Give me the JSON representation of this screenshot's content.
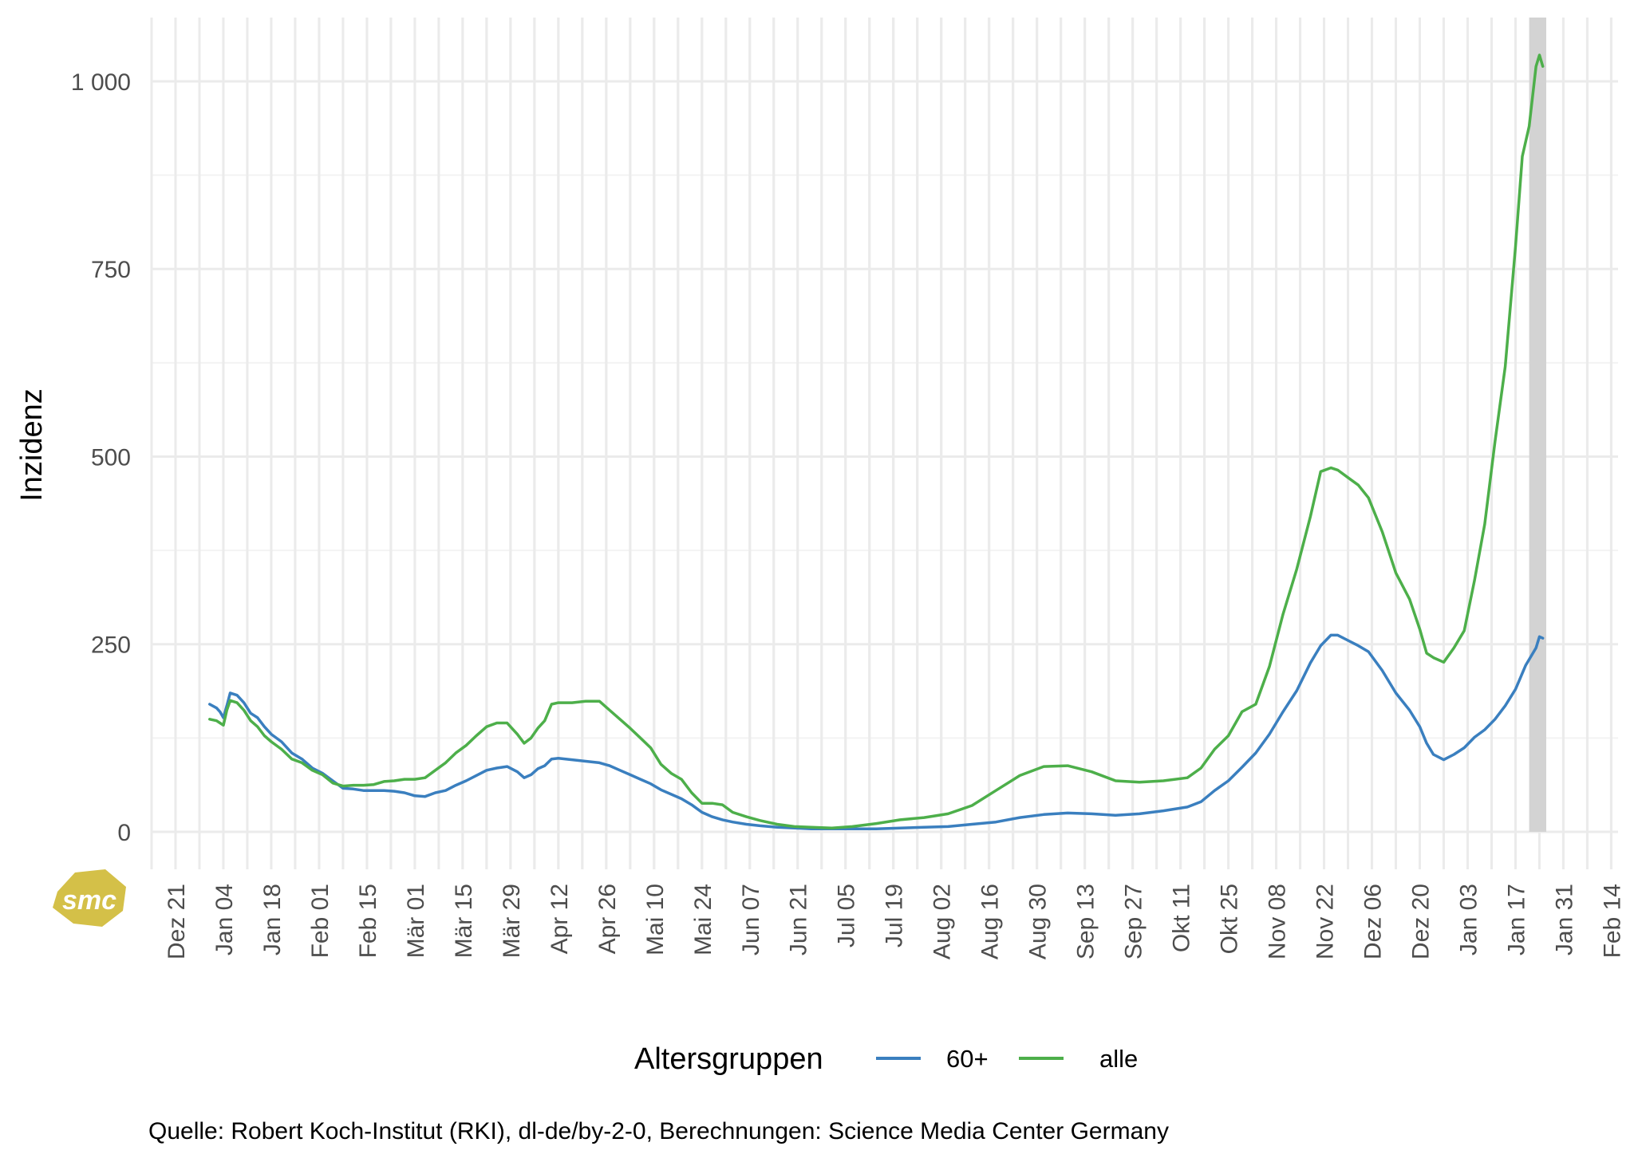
{
  "chart_data": {
    "type": "line",
    "ylabel": "Inzidenz",
    "yticks": [
      {
        "value": 0,
        "label": "0"
      },
      {
        "value": 250,
        "label": "250"
      },
      {
        "value": 500,
        "label": "500"
      },
      {
        "value": 750,
        "label": "750"
      },
      {
        "value": 1000,
        "label": "1 000"
      }
    ],
    "ylim": [
      -50,
      1085
    ],
    "xlim": [
      "2020-12-14",
      "2022-02-16"
    ],
    "xticks": [
      {
        "date": "2020-12-21",
        "label": "Dez 21"
      },
      {
        "date": "2021-01-04",
        "label": "Jan 04"
      },
      {
        "date": "2021-01-18",
        "label": "Jan 18"
      },
      {
        "date": "2021-02-01",
        "label": "Feb 01"
      },
      {
        "date": "2021-02-15",
        "label": "Feb 15"
      },
      {
        "date": "2021-03-01",
        "label": "Mär 01"
      },
      {
        "date": "2021-03-15",
        "label": "Mär 15"
      },
      {
        "date": "2021-03-29",
        "label": "Mär 29"
      },
      {
        "date": "2021-04-12",
        "label": "Apr 12"
      },
      {
        "date": "2021-04-26",
        "label": "Apr 26"
      },
      {
        "date": "2021-05-10",
        "label": "Mai 10"
      },
      {
        "date": "2021-05-24",
        "label": "Mai 24"
      },
      {
        "date": "2021-06-07",
        "label": "Jun 07"
      },
      {
        "date": "2021-06-21",
        "label": "Jun 21"
      },
      {
        "date": "2021-07-05",
        "label": "Jul 05"
      },
      {
        "date": "2021-07-19",
        "label": "Jul 19"
      },
      {
        "date": "2021-08-02",
        "label": "Aug 02"
      },
      {
        "date": "2021-08-16",
        "label": "Aug 16"
      },
      {
        "date": "2021-08-30",
        "label": "Aug 30"
      },
      {
        "date": "2021-09-13",
        "label": "Sep 13"
      },
      {
        "date": "2021-09-27",
        "label": "Sep 27"
      },
      {
        "date": "2021-10-11",
        "label": "Okt 11"
      },
      {
        "date": "2021-10-25",
        "label": "Okt 25"
      },
      {
        "date": "2021-11-08",
        "label": "Nov 08"
      },
      {
        "date": "2021-11-22",
        "label": "Nov 22"
      },
      {
        "date": "2021-12-06",
        "label": "Dez 06"
      },
      {
        "date": "2021-12-20",
        "label": "Dez 20"
      },
      {
        "date": "2022-01-03",
        "label": "Jan 03"
      },
      {
        "date": "2022-01-17",
        "label": "Jan 17"
      },
      {
        "date": "2022-01-31",
        "label": "Jan 31"
      },
      {
        "date": "2022-02-14",
        "label": "Feb 14"
      }
    ],
    "shaded_range": [
      "2022-01-21",
      "2022-01-26"
    ],
    "grid": true,
    "legend": {
      "title": "Altersgruppen",
      "placement": "bottom"
    },
    "series": [
      {
        "name": "60+",
        "color": "#3a7fbf",
        "points": [
          [
            "2020-12-31",
            170
          ],
          [
            "2021-01-02",
            165
          ],
          [
            "2021-01-03",
            160
          ],
          [
            "2021-01-04",
            152
          ],
          [
            "2021-01-05",
            168
          ],
          [
            "2021-01-06",
            185
          ],
          [
            "2021-01-08",
            182
          ],
          [
            "2021-01-10",
            172
          ],
          [
            "2021-01-12",
            158
          ],
          [
            "2021-01-14",
            152
          ],
          [
            "2021-01-16",
            140
          ],
          [
            "2021-01-18",
            130
          ],
          [
            "2021-01-21",
            120
          ],
          [
            "2021-01-24",
            105
          ],
          [
            "2021-01-27",
            97
          ],
          [
            "2021-01-30",
            85
          ],
          [
            "2021-02-02",
            78
          ],
          [
            "2021-02-05",
            68
          ],
          [
            "2021-02-08",
            58
          ],
          [
            "2021-02-11",
            57
          ],
          [
            "2021-02-14",
            55
          ],
          [
            "2021-02-17",
            55
          ],
          [
            "2021-02-20",
            55
          ],
          [
            "2021-02-23",
            54
          ],
          [
            "2021-02-26",
            52
          ],
          [
            "2021-03-01",
            48
          ],
          [
            "2021-03-04",
            47
          ],
          [
            "2021-03-07",
            52
          ],
          [
            "2021-03-10",
            55
          ],
          [
            "2021-03-13",
            62
          ],
          [
            "2021-03-16",
            68
          ],
          [
            "2021-03-19",
            75
          ],
          [
            "2021-03-22",
            82
          ],
          [
            "2021-03-25",
            85
          ],
          [
            "2021-03-28",
            87
          ],
          [
            "2021-03-31",
            80
          ],
          [
            "2021-04-02",
            72
          ],
          [
            "2021-04-04",
            76
          ],
          [
            "2021-04-06",
            84
          ],
          [
            "2021-04-08",
            88
          ],
          [
            "2021-04-10",
            97
          ],
          [
            "2021-04-12",
            98
          ],
          [
            "2021-04-16",
            96
          ],
          [
            "2021-04-20",
            94
          ],
          [
            "2021-04-24",
            92
          ],
          [
            "2021-04-27",
            88
          ],
          [
            "2021-04-30",
            82
          ],
          [
            "2021-05-03",
            76
          ],
          [
            "2021-05-06",
            70
          ],
          [
            "2021-05-09",
            64
          ],
          [
            "2021-05-12",
            56
          ],
          [
            "2021-05-15",
            50
          ],
          [
            "2021-05-18",
            44
          ],
          [
            "2021-05-21",
            36
          ],
          [
            "2021-05-24",
            26
          ],
          [
            "2021-05-27",
            20
          ],
          [
            "2021-05-30",
            16
          ],
          [
            "2021-06-02",
            13
          ],
          [
            "2021-06-06",
            10
          ],
          [
            "2021-06-10",
            8
          ],
          [
            "2021-06-15",
            6
          ],
          [
            "2021-06-20",
            5
          ],
          [
            "2021-06-25",
            4
          ],
          [
            "2021-07-01",
            4
          ],
          [
            "2021-07-07",
            4
          ],
          [
            "2021-07-14",
            4
          ],
          [
            "2021-07-21",
            5
          ],
          [
            "2021-07-28",
            6
          ],
          [
            "2021-08-04",
            7
          ],
          [
            "2021-08-11",
            10
          ],
          [
            "2021-08-18",
            13
          ],
          [
            "2021-08-25",
            19
          ],
          [
            "2021-09-01",
            23
          ],
          [
            "2021-09-08",
            25
          ],
          [
            "2021-09-15",
            24
          ],
          [
            "2021-09-22",
            22
          ],
          [
            "2021-09-29",
            24
          ],
          [
            "2021-10-06",
            28
          ],
          [
            "2021-10-13",
            33
          ],
          [
            "2021-10-17",
            40
          ],
          [
            "2021-10-21",
            55
          ],
          [
            "2021-10-25",
            68
          ],
          [
            "2021-10-29",
            86
          ],
          [
            "2021-11-02",
            105
          ],
          [
            "2021-11-06",
            130
          ],
          [
            "2021-11-10",
            160
          ],
          [
            "2021-11-14",
            188
          ],
          [
            "2021-11-18",
            225
          ],
          [
            "2021-11-21",
            248
          ],
          [
            "2021-11-24",
            262
          ],
          [
            "2021-11-26",
            262
          ],
          [
            "2021-11-29",
            255
          ],
          [
            "2021-12-02",
            248
          ],
          [
            "2021-12-05",
            240
          ],
          [
            "2021-12-09",
            215
          ],
          [
            "2021-12-13",
            185
          ],
          [
            "2021-12-17",
            162
          ],
          [
            "2021-12-20",
            140
          ],
          [
            "2021-12-22",
            118
          ],
          [
            "2021-12-24",
            103
          ],
          [
            "2021-12-27",
            96
          ],
          [
            "2021-12-30",
            103
          ],
          [
            "2022-01-02",
            112
          ],
          [
            "2022-01-05",
            126
          ],
          [
            "2022-01-08",
            136
          ],
          [
            "2022-01-11",
            150
          ],
          [
            "2022-01-14",
            168
          ],
          [
            "2022-01-17",
            190
          ],
          [
            "2022-01-20",
            222
          ],
          [
            "2022-01-23",
            245
          ],
          [
            "2022-01-24",
            260
          ],
          [
            "2022-01-25",
            258
          ]
        ]
      },
      {
        "name": "alle",
        "color": "#4daf4a",
        "points": [
          [
            "2020-12-31",
            150
          ],
          [
            "2021-01-02",
            148
          ],
          [
            "2021-01-03",
            145
          ],
          [
            "2021-01-04",
            142
          ],
          [
            "2021-01-05",
            162
          ],
          [
            "2021-01-06",
            175
          ],
          [
            "2021-01-08",
            172
          ],
          [
            "2021-01-10",
            162
          ],
          [
            "2021-01-12",
            148
          ],
          [
            "2021-01-14",
            140
          ],
          [
            "2021-01-16",
            128
          ],
          [
            "2021-01-18",
            120
          ],
          [
            "2021-01-21",
            110
          ],
          [
            "2021-01-24",
            97
          ],
          [
            "2021-01-27",
            92
          ],
          [
            "2021-01-30",
            82
          ],
          [
            "2021-02-02",
            76
          ],
          [
            "2021-02-05",
            65
          ],
          [
            "2021-02-08",
            61
          ],
          [
            "2021-02-11",
            62
          ],
          [
            "2021-02-14",
            62
          ],
          [
            "2021-02-17",
            63
          ],
          [
            "2021-02-20",
            67
          ],
          [
            "2021-02-23",
            68
          ],
          [
            "2021-02-26",
            70
          ],
          [
            "2021-03-01",
            70
          ],
          [
            "2021-03-04",
            72
          ],
          [
            "2021-03-07",
            82
          ],
          [
            "2021-03-10",
            92
          ],
          [
            "2021-03-13",
            105
          ],
          [
            "2021-03-16",
            115
          ],
          [
            "2021-03-19",
            128
          ],
          [
            "2021-03-22",
            140
          ],
          [
            "2021-03-25",
            145
          ],
          [
            "2021-03-28",
            145
          ],
          [
            "2021-03-31",
            130
          ],
          [
            "2021-04-02",
            118
          ],
          [
            "2021-04-04",
            125
          ],
          [
            "2021-04-06",
            138
          ],
          [
            "2021-04-08",
            148
          ],
          [
            "2021-04-10",
            170
          ],
          [
            "2021-04-12",
            172
          ],
          [
            "2021-04-16",
            172
          ],
          [
            "2021-04-20",
            174
          ],
          [
            "2021-04-24",
            174
          ],
          [
            "2021-04-27",
            162
          ],
          [
            "2021-04-30",
            150
          ],
          [
            "2021-05-03",
            138
          ],
          [
            "2021-05-06",
            125
          ],
          [
            "2021-05-09",
            112
          ],
          [
            "2021-05-12",
            90
          ],
          [
            "2021-05-15",
            78
          ],
          [
            "2021-05-18",
            70
          ],
          [
            "2021-05-21",
            52
          ],
          [
            "2021-05-24",
            38
          ],
          [
            "2021-05-27",
            38
          ],
          [
            "2021-05-30",
            36
          ],
          [
            "2021-06-02",
            26
          ],
          [
            "2021-06-06",
            20
          ],
          [
            "2021-06-10",
            15
          ],
          [
            "2021-06-15",
            10
          ],
          [
            "2021-06-20",
            7
          ],
          [
            "2021-06-25",
            6
          ],
          [
            "2021-07-01",
            5
          ],
          [
            "2021-07-07",
            7
          ],
          [
            "2021-07-14",
            11
          ],
          [
            "2021-07-21",
            16
          ],
          [
            "2021-07-28",
            19
          ],
          [
            "2021-08-04",
            24
          ],
          [
            "2021-08-11",
            35
          ],
          [
            "2021-08-18",
            55
          ],
          [
            "2021-08-25",
            75
          ],
          [
            "2021-09-01",
            87
          ],
          [
            "2021-09-08",
            88
          ],
          [
            "2021-09-15",
            80
          ],
          [
            "2021-09-22",
            68
          ],
          [
            "2021-09-29",
            66
          ],
          [
            "2021-10-06",
            68
          ],
          [
            "2021-10-13",
            72
          ],
          [
            "2021-10-17",
            85
          ],
          [
            "2021-10-21",
            110
          ],
          [
            "2021-10-25",
            128
          ],
          [
            "2021-10-29",
            160
          ],
          [
            "2021-11-02",
            170
          ],
          [
            "2021-11-06",
            220
          ],
          [
            "2021-11-10",
            290
          ],
          [
            "2021-11-14",
            350
          ],
          [
            "2021-11-18",
            420
          ],
          [
            "2021-11-21",
            480
          ],
          [
            "2021-11-24",
            485
          ],
          [
            "2021-11-26",
            482
          ],
          [
            "2021-11-29",
            472
          ],
          [
            "2021-12-02",
            462
          ],
          [
            "2021-12-05",
            445
          ],
          [
            "2021-12-09",
            400
          ],
          [
            "2021-12-13",
            345
          ],
          [
            "2021-12-17",
            310
          ],
          [
            "2021-12-20",
            270
          ],
          [
            "2021-12-22",
            238
          ],
          [
            "2021-12-24",
            232
          ],
          [
            "2021-12-27",
            226
          ],
          [
            "2021-12-30",
            245
          ],
          [
            "2022-01-02",
            268
          ],
          [
            "2022-01-05",
            335
          ],
          [
            "2022-01-08",
            410
          ],
          [
            "2022-01-11",
            520
          ],
          [
            "2022-01-14",
            620
          ],
          [
            "2022-01-17",
            780
          ],
          [
            "2022-01-19",
            900
          ],
          [
            "2022-01-21",
            940
          ],
          [
            "2022-01-23",
            1020
          ],
          [
            "2022-01-24",
            1035
          ],
          [
            "2022-01-25",
            1020
          ]
        ]
      }
    ]
  },
  "caption": "Quelle: Robert Koch-Institut (RKI), dl-de/by-2-0, Berechnungen: Science Media Center Germany",
  "logo": {
    "text": "smc",
    "color": "#d4c048"
  }
}
